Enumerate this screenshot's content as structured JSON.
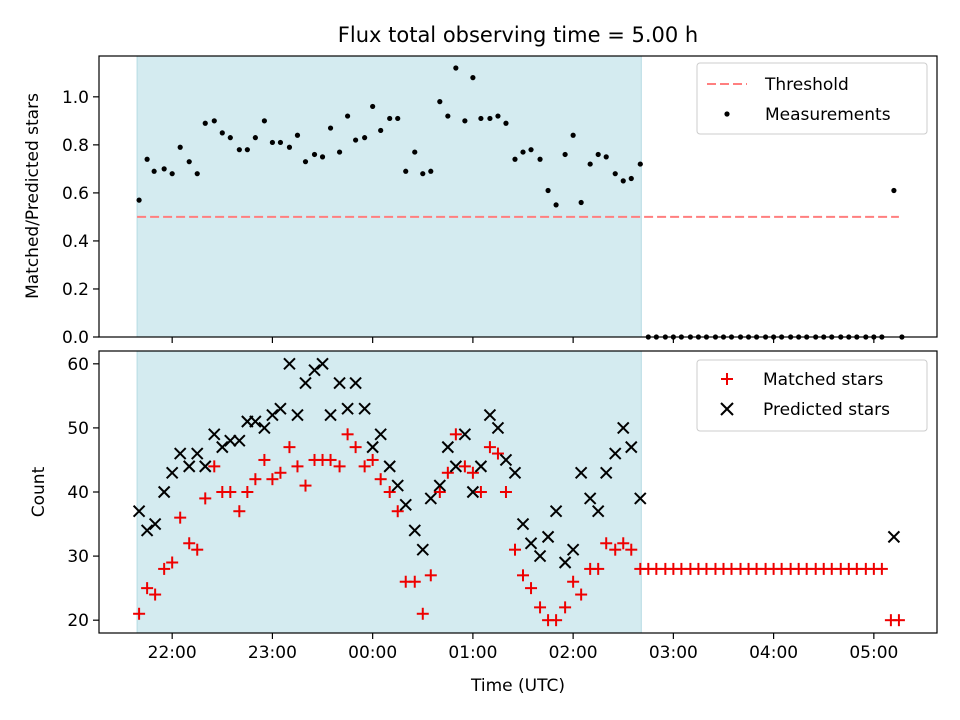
{
  "title": "Flux total observing time = 5.00 h",
  "colors": {
    "shade": "#d4ebf0",
    "threshold": "#ff7f7f",
    "measurement": "#000000",
    "matched": "#ee0000",
    "predicted": "#000000"
  },
  "x_axis": {
    "label": "Time (UTC)",
    "ticks": [
      {
        "hour": 22,
        "label": "22:00"
      },
      {
        "hour": 23,
        "label": "23:00"
      },
      {
        "hour": 24,
        "label": "00:00"
      },
      {
        "hour": 25,
        "label": "01:00"
      },
      {
        "hour": 26,
        "label": "02:00"
      },
      {
        "hour": 27,
        "label": "03:00"
      },
      {
        "hour": 28,
        "label": "04:00"
      },
      {
        "hour": 29,
        "label": "05:00"
      }
    ]
  },
  "chart_data": [
    {
      "type": "scatter",
      "ylabel": "Matched/Predicted stars",
      "ylim": [
        0,
        1.17
      ],
      "yticks": [
        "0.0",
        "0.2",
        "0.4",
        "0.6",
        "0.8",
        "1.0"
      ],
      "xlim_hours": [
        21.27,
        29.63
      ],
      "observing_window_hours": [
        21.65,
        26.68
      ],
      "legend": {
        "position": "upper right",
        "entries": [
          "Threshold",
          "Measurements"
        ]
      },
      "threshold": {
        "name": "Threshold",
        "value": 0.5,
        "x_range_hours": [
          21.65,
          29.25
        ]
      },
      "series": [
        {
          "name": "Measurements",
          "x_hours": [
            21.67,
            21.75,
            21.82,
            21.92,
            22.0,
            22.08,
            22.17,
            22.25,
            22.33,
            22.42,
            22.5,
            22.58,
            22.67,
            22.75,
            22.83,
            22.92,
            23.0,
            23.08,
            23.17,
            23.25,
            23.33,
            23.42,
            23.5,
            23.58,
            23.67,
            23.75,
            23.83,
            23.92,
            24.0,
            24.08,
            24.17,
            24.25,
            24.33,
            24.42,
            24.5,
            24.58,
            24.67,
            24.75,
            24.83,
            24.92,
            25.0,
            25.08,
            25.17,
            25.25,
            25.33,
            25.42,
            25.5,
            25.58,
            25.67,
            25.75,
            25.83,
            25.92,
            26.0,
            26.08,
            26.17,
            26.25,
            26.33,
            26.42,
            26.5,
            26.58,
            26.67,
            26.75,
            26.83,
            26.92,
            27.0,
            27.08,
            27.17,
            27.25,
            27.33,
            27.42,
            27.5,
            27.58,
            27.67,
            27.75,
            27.83,
            27.92,
            28.0,
            28.08,
            28.17,
            28.25,
            28.33,
            28.42,
            28.5,
            28.58,
            28.67,
            28.75,
            28.83,
            28.92,
            29.0,
            29.08,
            29.2,
            29.28
          ],
          "y": [
            0.57,
            0.74,
            0.69,
            0.7,
            0.68,
            0.79,
            0.73,
            0.68,
            0.89,
            0.9,
            0.85,
            0.83,
            0.78,
            0.78,
            0.83,
            0.9,
            0.81,
            0.81,
            0.79,
            0.84,
            0.73,
            0.76,
            0.75,
            0.87,
            0.77,
            0.92,
            0.82,
            0.83,
            0.96,
            0.86,
            0.91,
            0.91,
            0.69,
            0.77,
            0.68,
            0.69,
            0.98,
            0.92,
            1.12,
            0.9,
            1.08,
            0.91,
            0.91,
            0.92,
            0.89,
            0.74,
            0.77,
            0.78,
            0.74,
            0.61,
            0.55,
            0.76,
            0.84,
            0.56,
            0.72,
            0.76,
            0.75,
            0.68,
            0.65,
            0.66,
            0.72,
            0.0,
            0.0,
            0.0,
            0.0,
            0.0,
            0.0,
            0.0,
            0.0,
            0.0,
            0.0,
            0.0,
            0.0,
            0.0,
            0.0,
            0.0,
            0.0,
            0.0,
            0.0,
            0.0,
            0.0,
            0.0,
            0.0,
            0.0,
            0.0,
            0.0,
            0.0,
            0.0,
            0.0,
            0.0,
            0.61,
            0.0
          ]
        }
      ]
    },
    {
      "type": "scatter",
      "ylabel": "Count",
      "ylim": [
        18,
        62
      ],
      "yticks": [
        "20",
        "30",
        "40",
        "50",
        "60"
      ],
      "xlim_hours": [
        21.27,
        29.63
      ],
      "observing_window_hours": [
        21.65,
        26.68
      ],
      "legend": {
        "position": "upper right",
        "entries": [
          "Matched stars",
          "Predicted stars"
        ]
      },
      "series": [
        {
          "name": "Matched stars",
          "marker": "+",
          "x_hours": [
            21.67,
            21.75,
            21.83,
            21.92,
            22.0,
            22.08,
            22.17,
            22.25,
            22.33,
            22.42,
            22.5,
            22.58,
            22.67,
            22.75,
            22.83,
            22.92,
            23.0,
            23.08,
            23.17,
            23.25,
            23.33,
            23.42,
            23.5,
            23.58,
            23.67,
            23.75,
            23.83,
            23.92,
            24.0,
            24.08,
            24.17,
            24.25,
            24.33,
            24.42,
            24.5,
            24.58,
            24.67,
            24.75,
            24.83,
            24.92,
            25.0,
            25.08,
            25.17,
            25.25,
            25.33,
            25.42,
            25.5,
            25.58,
            25.67,
            25.75,
            25.83,
            25.92,
            26.0,
            26.08,
            26.17,
            26.25,
            26.33,
            26.42,
            26.5,
            26.58,
            26.67,
            26.75,
            26.83,
            26.92,
            27.0,
            27.08,
            27.17,
            27.25,
            27.33,
            27.42,
            27.5,
            27.58,
            27.67,
            27.75,
            27.83,
            27.92,
            28.0,
            28.08,
            28.17,
            28.25,
            28.33,
            28.42,
            28.5,
            28.58,
            28.67,
            28.75,
            28.83,
            28.92,
            29.0,
            29.08,
            29.17,
            29.25
          ],
          "y": [
            21,
            25,
            24,
            28,
            29,
            36,
            32,
            31,
            39,
            44,
            40,
            40,
            37,
            40,
            42,
            45,
            42,
            43,
            47,
            44,
            41,
            45,
            45,
            45,
            44,
            49,
            47,
            44,
            45,
            42,
            40,
            37,
            26,
            26,
            21,
            27,
            40,
            43,
            49,
            44,
            43,
            40,
            47,
            46,
            40,
            31,
            27,
            25,
            22,
            20,
            20,
            22,
            26,
            24,
            28,
            28,
            32,
            31,
            32,
            31,
            28,
            28,
            28,
            28,
            28,
            28,
            28,
            28,
            28,
            28,
            28,
            28,
            28,
            28,
            28,
            28,
            28,
            28,
            28,
            28,
            28,
            28,
            28,
            28,
            28,
            28,
            28,
            28,
            28,
            28,
            20,
            20
          ]
        },
        {
          "name": "Predicted stars",
          "marker": "x",
          "x_hours": [
            21.67,
            21.75,
            21.83,
            21.92,
            22.0,
            22.08,
            22.17,
            22.25,
            22.33,
            22.42,
            22.5,
            22.58,
            22.67,
            22.75,
            22.83,
            22.92,
            23.0,
            23.08,
            23.17,
            23.25,
            23.33,
            23.42,
            23.5,
            23.58,
            23.67,
            23.75,
            23.83,
            23.92,
            24.0,
            24.08,
            24.17,
            24.25,
            24.33,
            24.42,
            24.5,
            24.58,
            24.67,
            24.75,
            24.83,
            24.92,
            25.0,
            25.08,
            25.17,
            25.25,
            25.33,
            25.42,
            25.5,
            25.58,
            25.67,
            25.75,
            25.83,
            25.92,
            26.0,
            26.08,
            26.17,
            26.25,
            26.33,
            26.42,
            26.5,
            26.58,
            26.67,
            29.2
          ],
          "y": [
            37,
            34,
            35,
            40,
            43,
            46,
            44,
            46,
            44,
            49,
            47,
            48,
            48,
            51,
            51,
            50,
            52,
            53,
            60,
            52,
            57,
            59,
            60,
            52,
            57,
            53,
            57,
            53,
            47,
            49,
            44,
            41,
            38,
            34,
            31,
            39,
            41,
            47,
            44,
            49,
            40,
            44,
            52,
            50,
            45,
            43,
            35,
            32,
            30,
            33,
            37,
            29,
            31,
            43,
            39,
            37,
            43,
            46,
            50,
            47,
            39,
            33
          ]
        }
      ]
    }
  ]
}
